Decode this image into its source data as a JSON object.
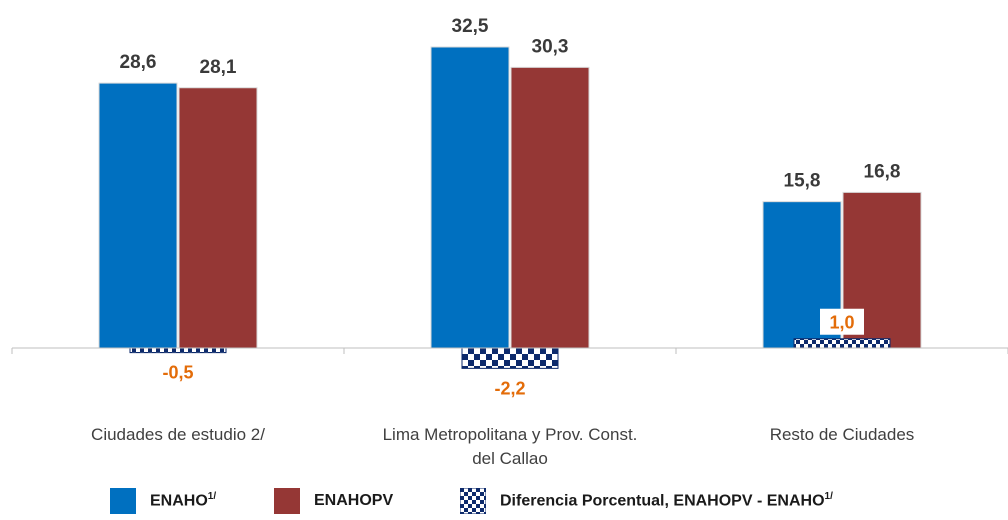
{
  "chart_data": {
    "type": "bar",
    "categories": [
      [
        "Ciudades de estudio 2/"
      ],
      [
        "Lima Metropolitana y Prov. Const.",
        "del Callao"
      ],
      [
        "Resto de Ciudades"
      ]
    ],
    "series": [
      {
        "name": "ENAHO",
        "name_sup": "1/",
        "values": [
          28.6,
          32.5,
          15.8
        ],
        "labels": [
          "28,6",
          "32,5",
          "15,8"
        ],
        "color": "#0070c0"
      },
      {
        "name": "ENAHOPV",
        "values": [
          28.1,
          30.3,
          16.8
        ],
        "labels": [
          "28,1",
          "30,3",
          "16,8"
        ],
        "color": "#953735"
      },
      {
        "name": "Diferencia Porcentual, ENAHOPV - ENAHO",
        "name_sup": "1/",
        "values": [
          -0.5,
          -2.2,
          1.0
        ],
        "labels": [
          "-0,5",
          "-2,2",
          "1,0"
        ],
        "color": "#0d2a6b",
        "pattern": "checkerboard"
      }
    ],
    "label_color": "#e36c09",
    "ylim": [
      -2.6,
      34.5
    ],
    "grid": false,
    "legend": "bottom-center"
  }
}
